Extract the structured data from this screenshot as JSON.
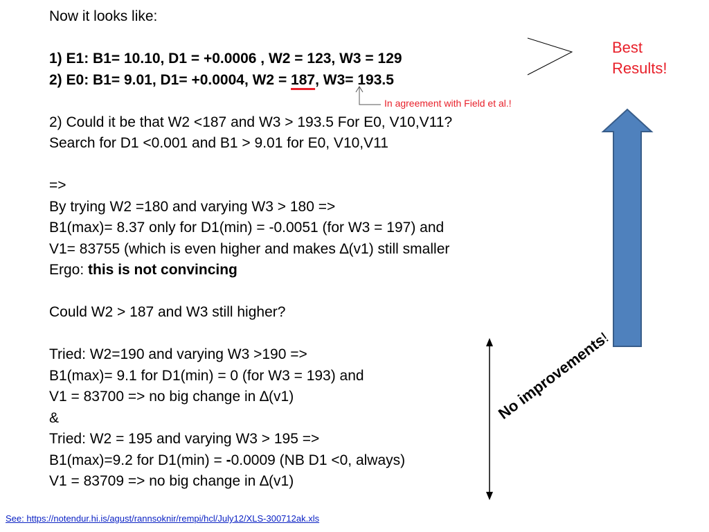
{
  "slide": {
    "lines": [
      {
        "segments": [
          {
            "text": "Now it looks like:"
          }
        ]
      },
      {
        "blank": true
      },
      {
        "segments": [
          {
            "text": "1) E1: B1= 10.10, D1 = +0.0006 , W2 = 123, W3 = 129",
            "bold": true
          }
        ]
      },
      {
        "segments": [
          {
            "text": "2) E0: B1= 9.01, D1= +0.0004, W2 = ",
            "bold": true
          },
          {
            "text": "187",
            "bold": true,
            "underline": true
          },
          {
            "text": ", W3= 193.5",
            "bold": true
          }
        ]
      },
      {
        "blank": true
      },
      {
        "segments": [
          {
            "text": "2) Could it be that W2 <187 and W3 > 193.5 For E0, V10,V11?"
          }
        ]
      },
      {
        "segments": [
          {
            "text": "Search for D1 <0.001 and B1 > 9.01 for E0, V10,V11"
          }
        ]
      },
      {
        "blank": true
      },
      {
        "segments": [
          {
            "text": "=>"
          }
        ]
      },
      {
        "segments": [
          {
            "text": "By trying W2 =180 and varying W3 > 180 =>"
          }
        ]
      },
      {
        "segments": [
          {
            "text": "B1(max)= 8.37 only for D1(min) = -0.0051 (for W3 = 197) and"
          }
        ]
      },
      {
        "segments": [
          {
            "text": "V1= 83755 (which is even higher and makes ∆(v1) still smaller"
          }
        ]
      },
      {
        "segments": [
          {
            "text": "Ergo: "
          },
          {
            "text": "this is not convincing",
            "bold": true
          }
        ]
      },
      {
        "blank": true
      },
      {
        "segments": [
          {
            "text": "Could W2 > 187 and W3 still higher?"
          }
        ]
      },
      {
        "blank": true
      },
      {
        "segments": [
          {
            "text": "Tried: W2=190 and varying W3 >190 =>"
          }
        ]
      },
      {
        "segments": [
          {
            "text": "B1(max)= 9.1 for D1(min) = 0 (for W3 = 193) and"
          }
        ]
      },
      {
        "segments": [
          {
            "text": "V1 = 83700 => no big change in ∆(v1)"
          }
        ]
      },
      {
        "segments": [
          {
            "text": "&"
          }
        ]
      },
      {
        "segments": [
          {
            "text": "Tried: W2 = 195 and varying W3 > 195 =>"
          }
        ]
      },
      {
        "segments": [
          {
            "text": "B1(max)=9.2 for D1(min) = "
          },
          {
            "text": "-",
            "bold": true
          },
          {
            "text": "0.0009 (NB D1 <0, always)"
          }
        ]
      },
      {
        "segments": [
          {
            "text": "V1 = 83709 => no big change in ∆(v1)"
          }
        ]
      }
    ],
    "agreement_note": "In agreement with Field et al.!",
    "best_results": [
      "Best",
      "Results!"
    ],
    "no_improvements": {
      "bold_text": "No improvements",
      "suffix": "!"
    },
    "see_link": "See:    https://notendur.hi.is/agust/rannsoknir/rempi/hcl/July12/XLS-300712ak.xls",
    "colors": {
      "accent_red": "#e8202a",
      "arrow_fill": "#4f81bd",
      "arrow_stroke": "#385d8a",
      "link_blue": "#0b22c4"
    },
    "icons": [
      "up-arrow-icon",
      "double-arrow-icon",
      "chevron-bracket-icon",
      "pointer-arrow-icon"
    ]
  }
}
